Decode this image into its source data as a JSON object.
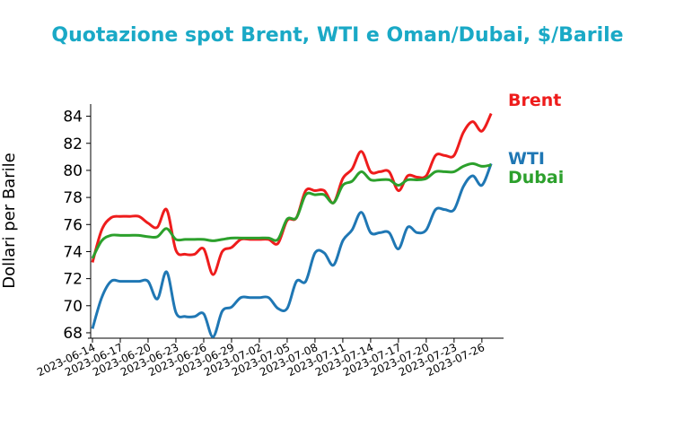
{
  "chart_data": {
    "type": "line",
    "title": "Quotazione spot Brent, WTI e Oman/Dubai, $/Barile",
    "y_label": "Dollari per Barile",
    "x": [
      "2023-06-14",
      "2023-06-15",
      "2023-06-16",
      "2023-06-17",
      "2023-06-18",
      "2023-06-19",
      "2023-06-20",
      "2023-06-21",
      "2023-06-22",
      "2023-06-23",
      "2023-06-24",
      "2023-06-25",
      "2023-06-26",
      "2023-06-27",
      "2023-06-28",
      "2023-06-29",
      "2023-06-30",
      "2023-07-01",
      "2023-07-02",
      "2023-07-03",
      "2023-07-04",
      "2023-07-05",
      "2023-07-06",
      "2023-07-07",
      "2023-07-08",
      "2023-07-09",
      "2023-07-10",
      "2023-07-11",
      "2023-07-12",
      "2023-07-13",
      "2023-07-14",
      "2023-07-15",
      "2023-07-16",
      "2023-07-17",
      "2023-07-18",
      "2023-07-19",
      "2023-07-20",
      "2023-07-21",
      "2023-07-22",
      "2023-07-23",
      "2023-07-24",
      "2023-07-25",
      "2023-07-26",
      "2023-07-27"
    ],
    "series": [
      {
        "name": "Brent",
        "color": "#ee1c1c",
        "values": [
          73.2,
          75.6,
          76.5,
          76.6,
          76.6,
          76.6,
          76.1,
          75.8,
          77.1,
          74.1,
          73.8,
          73.8,
          74.2,
          72.3,
          74.0,
          74.3,
          74.9,
          74.9,
          74.9,
          74.9,
          74.6,
          76.3,
          76.5,
          78.5,
          78.5,
          78.5,
          77.6,
          79.4,
          80.1,
          81.4,
          79.9,
          79.9,
          79.9,
          78.5,
          79.6,
          79.5,
          79.6,
          81.1,
          81.1,
          81.1,
          82.8,
          83.6,
          82.9,
          84.2
        ]
      },
      {
        "name": "WTI",
        "color": "#1f77b4",
        "values": [
          68.3,
          70.6,
          71.8,
          71.8,
          71.8,
          71.8,
          71.8,
          70.5,
          72.5,
          69.5,
          69.2,
          69.2,
          69.4,
          67.7,
          69.6,
          69.9,
          70.6,
          70.6,
          70.6,
          70.6,
          69.8,
          69.8,
          71.8,
          71.8,
          73.9,
          73.9,
          73.0,
          74.8,
          75.6,
          76.9,
          75.4,
          75.4,
          75.4,
          74.2,
          75.8,
          75.4,
          75.6,
          77.1,
          77.1,
          77.1,
          78.8,
          79.6,
          78.9,
          80.5
        ]
      },
      {
        "name": "Dubai",
        "color": "#2ca02c",
        "values": [
          73.5,
          74.8,
          75.2,
          75.2,
          75.2,
          75.2,
          75.1,
          75.1,
          75.7,
          74.9,
          74.9,
          74.9,
          74.9,
          74.8,
          74.9,
          75.0,
          75.0,
          75.0,
          75.0,
          75.0,
          74.9,
          76.4,
          76.5,
          78.2,
          78.2,
          78.2,
          77.6,
          78.9,
          79.2,
          79.9,
          79.3,
          79.3,
          79.3,
          78.9,
          79.3,
          79.3,
          79.4,
          79.9,
          79.9,
          79.9,
          80.3,
          80.5,
          80.3,
          80.4
        ]
      }
    ],
    "xticks": [
      "2023-06-14",
      "2023-06-17",
      "2023-06-20",
      "2023-06-23",
      "2023-06-26",
      "2023-06-29",
      "2023-07-02",
      "2023-07-05",
      "2023-07-08",
      "2023-07-11",
      "2023-07-14",
      "2023-07-17",
      "2023-07-20",
      "2023-07-23",
      "2023-07-26"
    ],
    "ylim": [
      67.6,
      84.9
    ],
    "yticks": [
      68,
      70,
      72,
      74,
      76,
      78,
      80,
      82,
      84
    ]
  }
}
